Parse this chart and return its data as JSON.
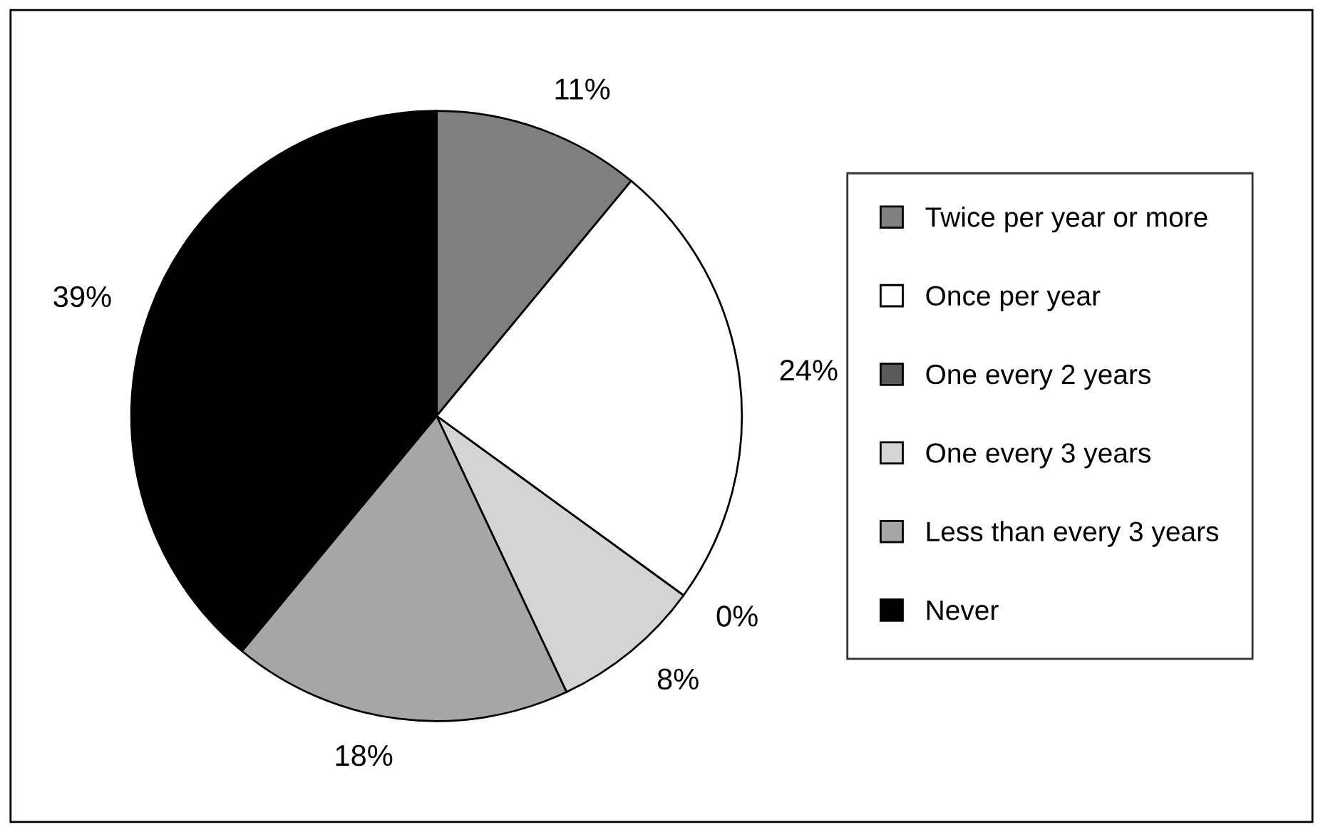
{
  "chart_data": {
    "type": "pie",
    "categories": [
      "Twice per year or more",
      "Once per year",
      "One every 2 years",
      "One every 3 years",
      "Less than every 3 years",
      "Never"
    ],
    "values": [
      11,
      24,
      0,
      8,
      18,
      39
    ],
    "value_labels": [
      "11%",
      "24%",
      "0%",
      "8%",
      "18%",
      "39%"
    ],
    "colors": [
      "#7f7f7f",
      "#ffffff",
      "#5a5a5a",
      "#d4d4d4",
      "#a6a6a6",
      "#000000"
    ],
    "legend": "right"
  }
}
